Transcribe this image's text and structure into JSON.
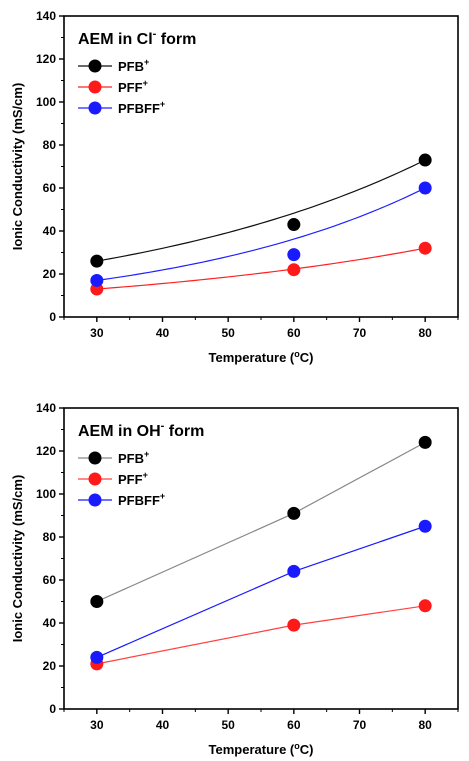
{
  "chart_data": [
    {
      "type": "scatter",
      "title": "AEM in Cl",
      "title_superscript": "-",
      "title_suffix": " form",
      "xlabel": "Temperature (",
      "xlabel_degree": "o",
      "xlabel_suffix": "C)",
      "ylabel": "Ionic Conductivity (mS/cm)",
      "xlim": [
        25,
        85
      ],
      "ylim": [
        0,
        140
      ],
      "xticks": [
        30,
        40,
        50,
        60,
        70,
        80
      ],
      "yticks": [
        0,
        20,
        40,
        60,
        80,
        100,
        120,
        140
      ],
      "legend_position": "top-left",
      "fit": "curve",
      "series": [
        {
          "name": "PFB",
          "sup": "+",
          "color": "#000000",
          "line_color": "#111111",
          "x": [
            30,
            60,
            80
          ],
          "y": [
            26,
            43,
            73
          ]
        },
        {
          "name": "PFF",
          "sup": "+",
          "color": "#ff1a1a",
          "line_color": "#ff2020",
          "x": [
            30,
            60,
            80
          ],
          "y": [
            13,
            22,
            32
          ]
        },
        {
          "name": "PFBFF",
          "sup": "+",
          "color": "#1a1aff",
          "line_color": "#2020ff",
          "x": [
            30,
            60,
            80
          ],
          "y": [
            17,
            29,
            60
          ]
        }
      ]
    },
    {
      "type": "line",
      "title": "AEM in OH",
      "title_superscript": "-",
      "title_suffix": " form",
      "xlabel": "Temperature (",
      "xlabel_degree": "o",
      "xlabel_suffix": "C)",
      "ylabel": "Ionic Conductivity (mS/cm)",
      "xlim": [
        25,
        85
      ],
      "ylim": [
        0,
        140
      ],
      "xticks": [
        30,
        40,
        50,
        60,
        70,
        80
      ],
      "yticks": [
        0,
        20,
        40,
        60,
        80,
        100,
        120,
        140
      ],
      "legend_position": "top-left",
      "fit": "straight",
      "series": [
        {
          "name": "PFB",
          "sup": "+",
          "color": "#000000",
          "line_color": "#888888",
          "x": [
            30,
            60,
            80
          ],
          "y": [
            50,
            91,
            124
          ]
        },
        {
          "name": "PFF",
          "sup": "+",
          "color": "#ff1a1a",
          "line_color": "#ff4040",
          "x": [
            30,
            60,
            80
          ],
          "y": [
            21,
            39,
            48
          ]
        },
        {
          "name": "PFBFF",
          "sup": "+",
          "color": "#1a1aff",
          "line_color": "#1a1aff",
          "x": [
            30,
            60,
            80
          ],
          "y": [
            24,
            64,
            85
          ]
        }
      ]
    }
  ]
}
